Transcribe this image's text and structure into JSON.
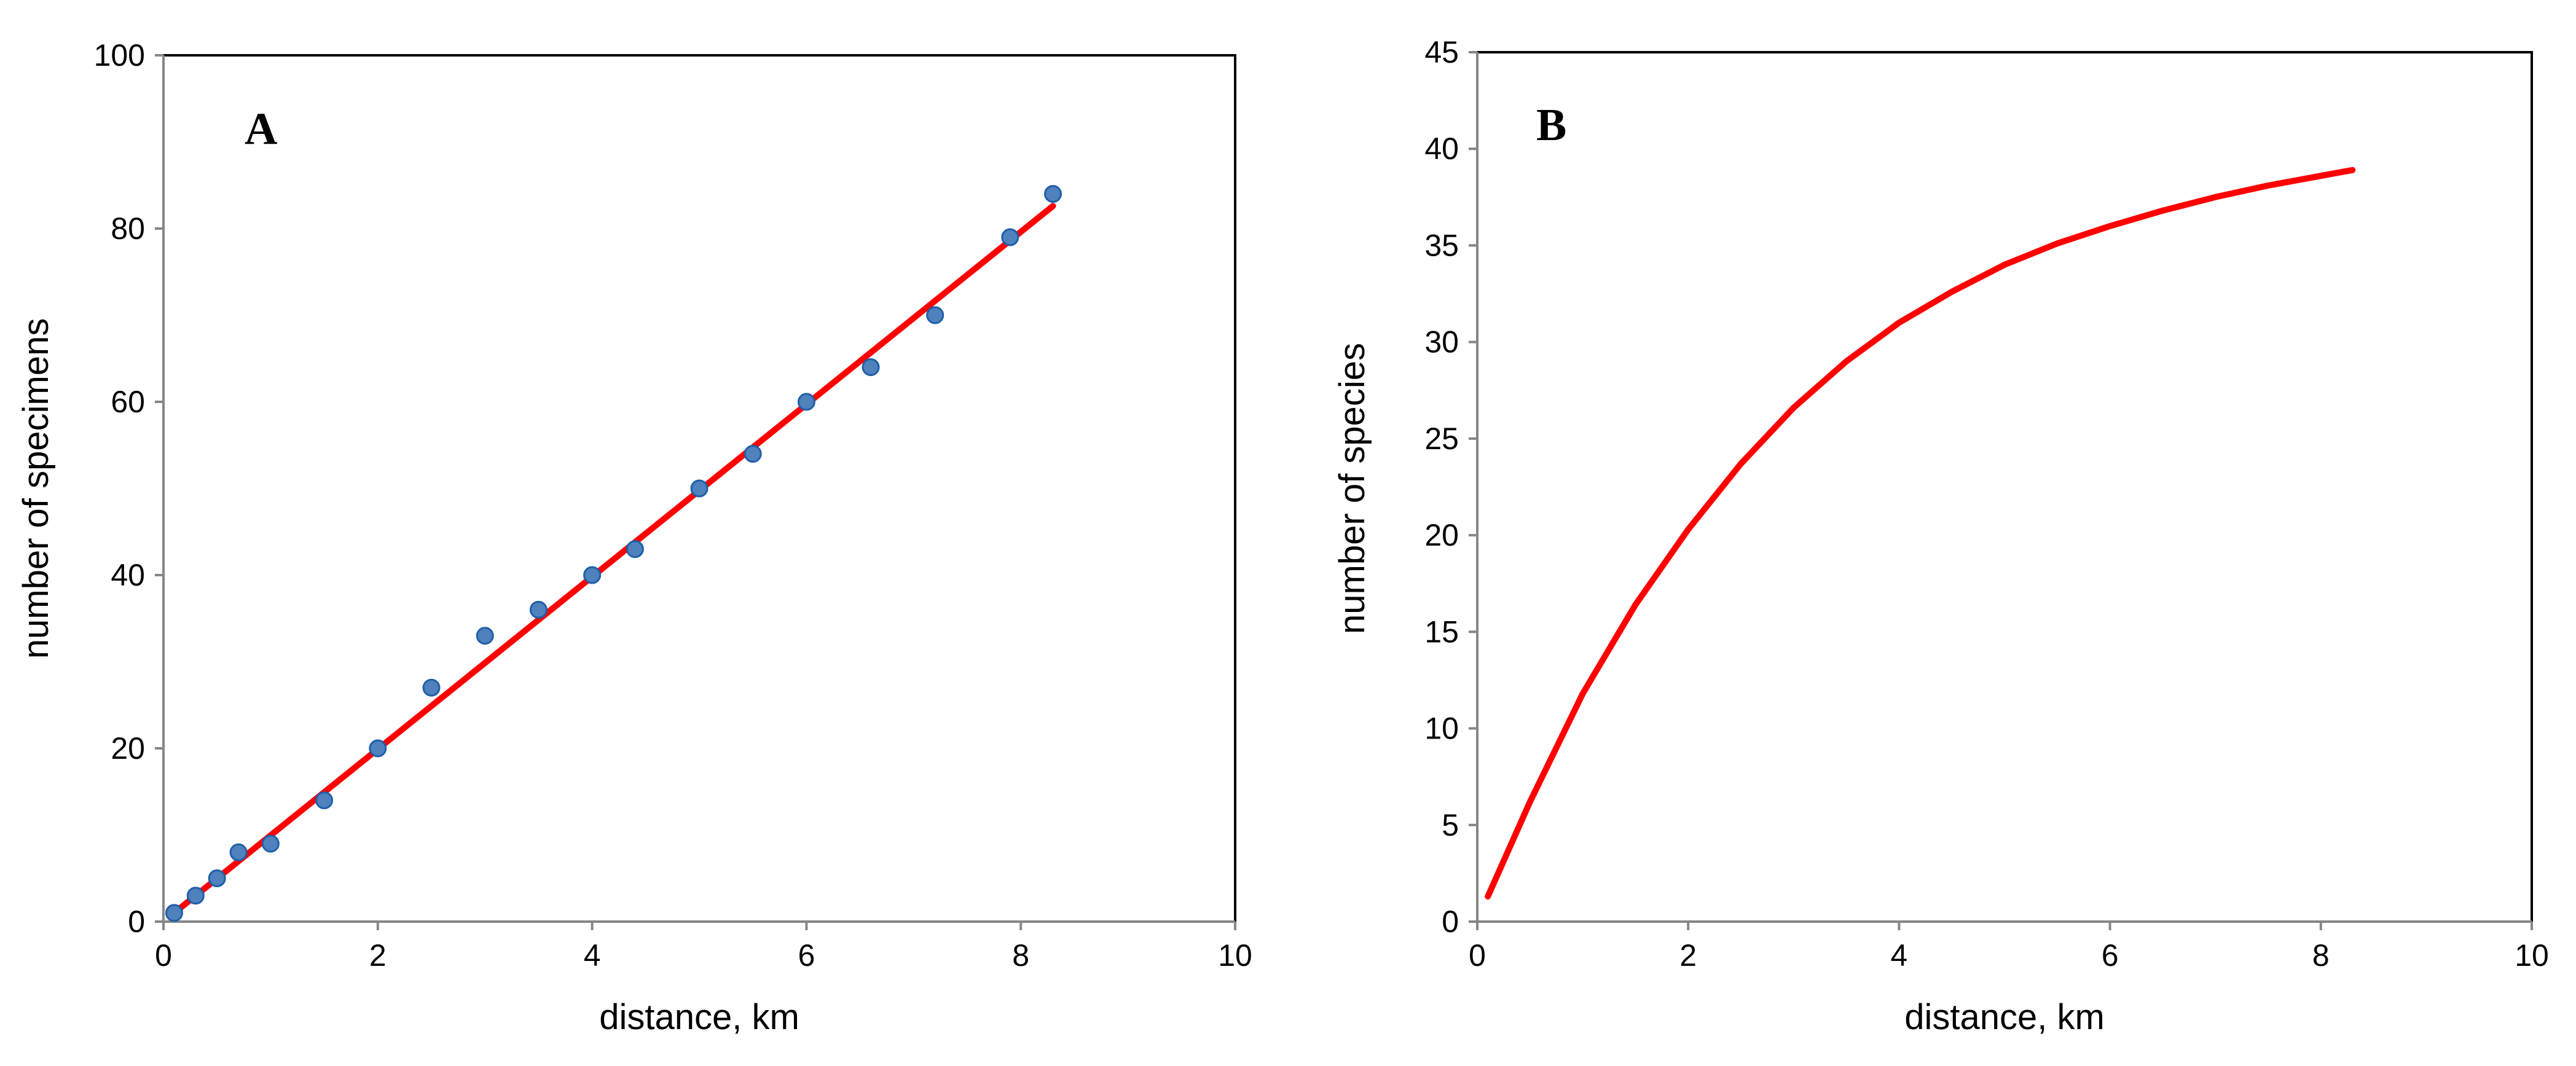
{
  "colors": {
    "fit_line": "#ff0000",
    "marker_fill": "#4f81bd",
    "marker_edge": "#1f5fa8",
    "axis_ticks": "#868686",
    "frame": "#000000"
  },
  "chart_data": [
    {
      "type": "scatter",
      "panel_label": "A",
      "xlabel": "distance, km",
      "ylabel": "number of specimens",
      "xlim": [
        0,
        10
      ],
      "ylim": [
        0,
        100
      ],
      "xticks": [
        0,
        2,
        4,
        6,
        8,
        10
      ],
      "yticks": [
        0,
        20,
        40,
        60,
        80,
        100
      ],
      "series": [
        {
          "kind": "points",
          "x": [
            0.1,
            0.3,
            0.5,
            0.7,
            1.0,
            1.5,
            2.0,
            2.5,
            3.0,
            3.5,
            4.0,
            4.4,
            5.0,
            5.5,
            6.0,
            6.6,
            7.2,
            7.9,
            8.3
          ],
          "y": [
            1,
            3,
            5,
            8,
            9,
            14,
            20,
            27,
            33,
            36,
            40,
            43,
            50,
            54,
            60,
            64,
            70,
            79,
            84
          ]
        },
        {
          "kind": "line",
          "x": [
            0.1,
            8.3
          ],
          "y": [
            1.0,
            82.6
          ]
        }
      ]
    },
    {
      "type": "line",
      "panel_label": "B",
      "xlabel": "distance, km",
      "ylabel": "number of species",
      "xlim": [
        0,
        10
      ],
      "ylim": [
        0,
        45
      ],
      "xticks": [
        0,
        2,
        4,
        6,
        8,
        10
      ],
      "yticks": [
        0,
        5,
        10,
        15,
        20,
        25,
        30,
        35,
        40,
        45
      ],
      "series": [
        {
          "kind": "line",
          "x": [
            0.1,
            0.5,
            1.0,
            1.5,
            2.0,
            2.5,
            3.0,
            3.5,
            4.0,
            4.5,
            5.0,
            5.5,
            6.0,
            6.5,
            7.0,
            7.5,
            8.0,
            8.3
          ],
          "y": [
            1.3,
            6.2,
            11.8,
            16.4,
            20.3,
            23.7,
            26.6,
            29.0,
            31.0,
            32.6,
            34.0,
            35.1,
            36.0,
            36.8,
            37.5,
            38.1,
            38.6,
            38.9
          ]
        }
      ]
    }
  ]
}
